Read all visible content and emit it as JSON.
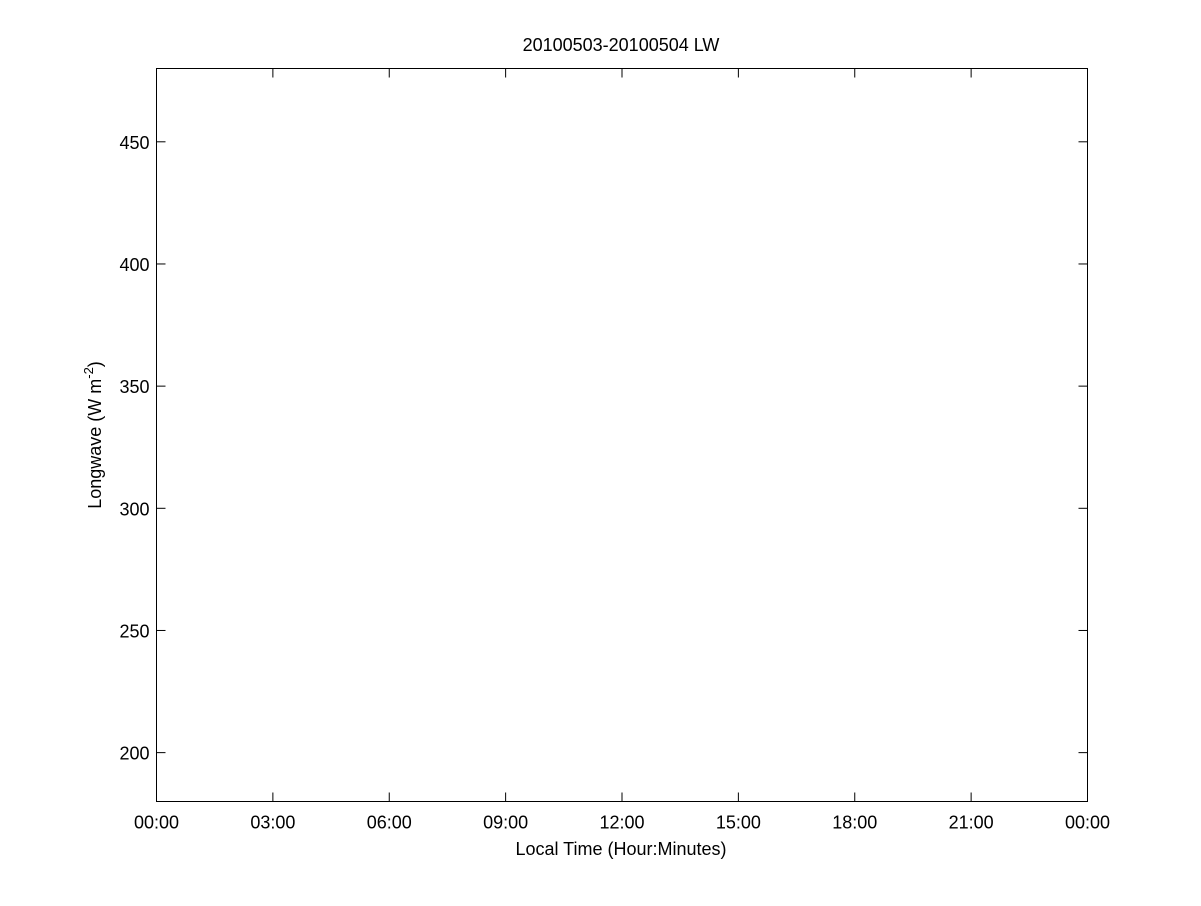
{
  "chart_data": {
    "type": "line",
    "title": "20100503-20100504 LW",
    "xlabel": "Local Time (Hour:Minutes)",
    "ylabel": {
      "text": "Longwave (W m",
      "superscript": "-2",
      "suffix": ")"
    },
    "x_tick_labels": [
      "00:00",
      "03:00",
      "06:00",
      "09:00",
      "12:00",
      "15:00",
      "18:00",
      "21:00",
      "00:00"
    ],
    "x_ticks_hours": [
      0,
      3,
      6,
      9,
      12,
      15,
      18,
      21,
      24
    ],
    "xlim_hours": [
      0,
      24
    ],
    "y_ticks": [
      200,
      250,
      300,
      350,
      400,
      450
    ],
    "ylim": [
      180,
      480
    ],
    "grid": false,
    "series": []
  }
}
